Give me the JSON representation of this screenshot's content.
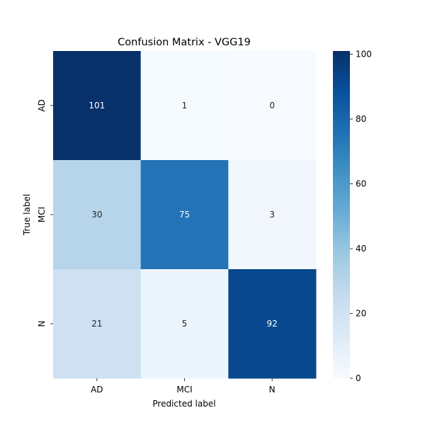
{
  "chart_data": {
    "type": "heatmap",
    "title": "Confusion Matrix - VGG19",
    "xlabel": "Predicted label",
    "ylabel": "True label",
    "x_categories": [
      "AD",
      "MCI",
      "N"
    ],
    "y_categories": [
      "AD",
      "MCI",
      "N"
    ],
    "values": [
      [
        101,
        1,
        0
      ],
      [
        30,
        75,
        3
      ],
      [
        21,
        5,
        92
      ]
    ],
    "colormap": "Blues",
    "color_range": [
      0,
      101
    ],
    "colorbar_ticks": [
      "0",
      "20",
      "40",
      "60",
      "80",
      "100"
    ],
    "colorbar_tick_values": [
      0,
      20,
      40,
      60,
      80,
      100
    ],
    "colorbar": true,
    "grid": false,
    "annotations": true
  }
}
